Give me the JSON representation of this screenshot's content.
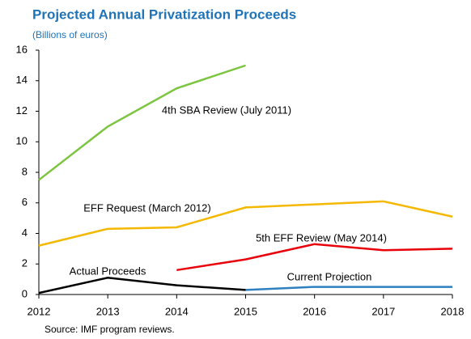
{
  "chart_data": {
    "type": "line",
    "title": "Projected Annual Privatization Proceeds",
    "subtitle": "(Billions of euros)",
    "source": "Source: IMF program reviews.",
    "x": [
      2012,
      2013,
      2014,
      2015,
      2016,
      2017,
      2018
    ],
    "xlim": [
      2012,
      2018
    ],
    "xticks": [
      2012,
      2013,
      2014,
      2015,
      2016,
      2017,
      2018
    ],
    "ylim": [
      0,
      16
    ],
    "yticks": [
      0,
      2,
      4,
      6,
      8,
      10,
      12,
      14,
      16
    ],
    "grid": false,
    "series": [
      {
        "name": "4th SBA Review (July 2011)",
        "color": "#7dc540",
        "values": [
          7.5,
          11,
          13.5,
          15,
          null,
          null,
          null
        ]
      },
      {
        "name": "EFF Request (March 2012)",
        "color": "#f5b800",
        "values": [
          3.2,
          4.3,
          4.4,
          5.7,
          5.9,
          6.1,
          5.1
        ]
      },
      {
        "name": "5th EFF Review (May 2014)",
        "color": "#e8000b",
        "values": [
          null,
          null,
          1.6,
          2.3,
          3.3,
          2.9,
          3.0
        ]
      },
      {
        "name": "Actual Proceeds",
        "color": "#000000",
        "values": [
          0.1,
          1.1,
          0.6,
          0.3,
          null,
          null,
          null
        ]
      },
      {
        "name": "Current Projection",
        "color": "#2f7fc1",
        "values": [
          null,
          null,
          null,
          0.3,
          0.5,
          0.5,
          0.5
        ]
      }
    ]
  }
}
